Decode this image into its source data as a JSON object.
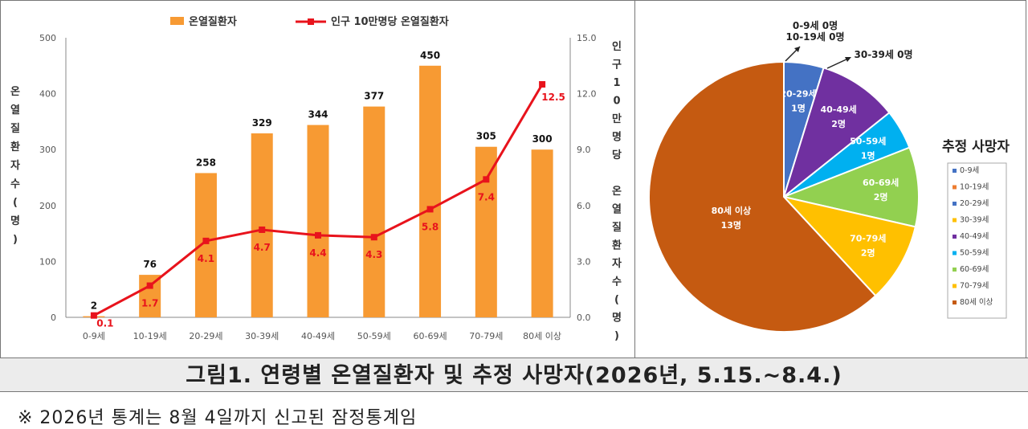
{
  "caption": "그림1. 연령별 온열질환자 및 추정 사망자(2026년, 5.15.~8.4.)",
  "note": "※ 2026년 통계는 8월 4일까지 신고된 잠정통계임",
  "colors": {
    "bar": "#f79a33",
    "line": "#e8131c",
    "axis": "#555555"
  },
  "chart_data": [
    {
      "type": "bar",
      "title": "",
      "categories": [
        "0-9세",
        "10-19세",
        "20-29세",
        "30-39세",
        "40-49세",
        "50-59세",
        "60-69세",
        "70-79세",
        "80세 이상"
      ],
      "series": [
        {
          "name": "온열질환자",
          "type": "bar",
          "axis": "left",
          "values": [
            2,
            76,
            258,
            329,
            344,
            377,
            450,
            305,
            300
          ],
          "labels": [
            "2",
            "76",
            "258",
            "329",
            "344",
            "377",
            "450",
            "305",
            "300"
          ]
        },
        {
          "name": "인구 10만명당 온열질환자",
          "type": "line",
          "axis": "right",
          "values": [
            0.1,
            1.7,
            4.1,
            4.7,
            4.4,
            4.3,
            5.8,
            7.4,
            12.5
          ],
          "labels": [
            "0.1",
            "1.7",
            "4.1",
            "4.7",
            "4.4",
            "4.3",
            "5.8",
            "7.4",
            "12.5"
          ]
        }
      ],
      "ylabel_left": "온열질환자수(명)",
      "ylabel_right": "인구10만명당 온열질환자수(명)",
      "ylim_left": [
        0,
        500
      ],
      "ylim_right": [
        0,
        15
      ],
      "yticks_left": [
        "0",
        "100",
        "200",
        "300",
        "400",
        "500"
      ],
      "yticks_right": [
        "0.0",
        "3.0",
        "6.0",
        "9.0",
        "12.0",
        "15.0"
      ],
      "legend_position": "top",
      "grid": false
    },
    {
      "type": "pie",
      "title": "추정 사망자",
      "slices": [
        {
          "label": "0-9세",
          "value": 0,
          "text": "0-9세 0명",
          "color": "#4472c4"
        },
        {
          "label": "10-19세",
          "value": 0,
          "text": "10-19세 0명",
          "color": "#ed7d31"
        },
        {
          "label": "20-29세",
          "value": 1,
          "text": "20-29세 1명",
          "color": "#4472c4"
        },
        {
          "label": "30-39세",
          "value": 0,
          "text": "30-39세 0명",
          "color": "#ffc000"
        },
        {
          "label": "40-49세",
          "value": 2,
          "text": "40-49세 2명",
          "color": "#7030a0"
        },
        {
          "label": "50-59세",
          "value": 1,
          "text": "50-59세 1명",
          "color": "#00b0f0"
        },
        {
          "label": "60-69세",
          "value": 2,
          "text": "60-69세 2명",
          "color": "#92d050"
        },
        {
          "label": "70-79세",
          "value": 2,
          "text": "70-79세 2명",
          "color": "#ffc000"
        },
        {
          "label": "80세 이상",
          "value": 13,
          "text": "80세 이상 13명",
          "color": "#c55a11"
        }
      ],
      "legend_position": "right"
    }
  ]
}
